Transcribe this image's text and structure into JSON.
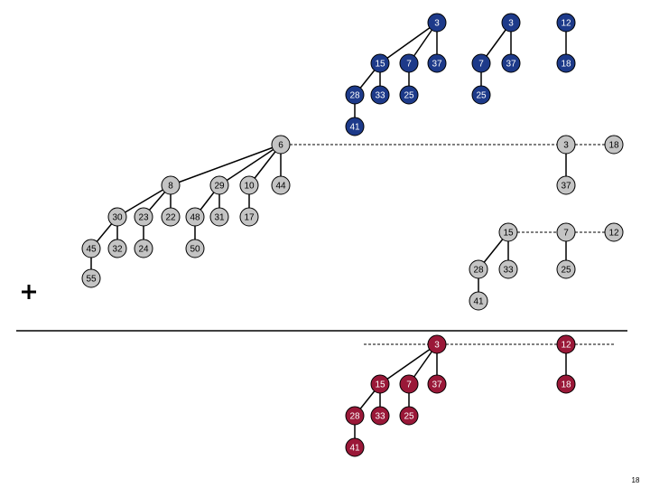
{
  "top_heaps": {
    "nodes": [
      3,
      15,
      7,
      37,
      28,
      33,
      25,
      41,
      3,
      7,
      37,
      25,
      12,
      18
    ]
  },
  "middle_heaps": {
    "nodes": [
      6,
      8,
      29,
      10,
      44,
      30,
      23,
      22,
      48,
      31,
      17,
      45,
      32,
      24,
      50,
      55,
      3,
      18,
      37,
      15,
      7,
      12,
      28,
      33,
      25,
      41
    ]
  },
  "bottom_heaps": {
    "nodes": [
      3,
      15,
      7,
      37,
      28,
      33,
      25,
      41,
      12,
      18
    ]
  },
  "page_number": "18"
}
